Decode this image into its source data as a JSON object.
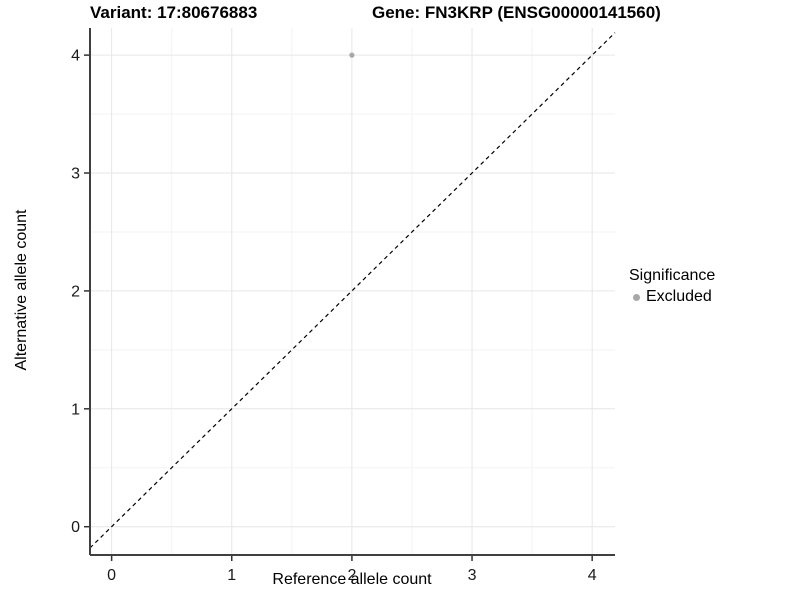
{
  "header": {
    "variant_title": "Variant: 17:80676883",
    "gene_title": "Gene: FN3KRP (ENSG00000141560)"
  },
  "chart_data": {
    "type": "scatter",
    "title_left": "Variant: 17:80676883",
    "title_right": "Gene: FN3KRP (ENSG00000141560)",
    "xlabel": "Reference allele count",
    "ylabel": "Alternative allele count",
    "xlim": [
      -0.18,
      4.19
    ],
    "ylim": [
      -0.24,
      4.23
    ],
    "xticks": [
      0,
      1,
      2,
      3,
      4
    ],
    "yticks": [
      0,
      1,
      2,
      3,
      4
    ],
    "minor_ticks": [
      0.5,
      1.5,
      2.5,
      3.5
    ],
    "grid": true,
    "reference_line": {
      "type": "identity-diagonal",
      "style": "dashed",
      "color": "#000000"
    },
    "series": [
      {
        "name": "Excluded",
        "color": "#a8a8a8",
        "points": [
          [
            2,
            4
          ]
        ]
      }
    ],
    "legend": {
      "title": "Significance",
      "position": "right",
      "entries": [
        {
          "label": "Excluded",
          "color": "#a8a8a8"
        }
      ]
    }
  },
  "colors": {
    "background": "#ffffff",
    "grid_major": "#e6e6e6",
    "grid_minor": "#f3f3f3",
    "axis_line": "#404040",
    "tick_mark": "#333333",
    "tick_label": "#1a1a1a",
    "point": "#a8a8a8"
  }
}
